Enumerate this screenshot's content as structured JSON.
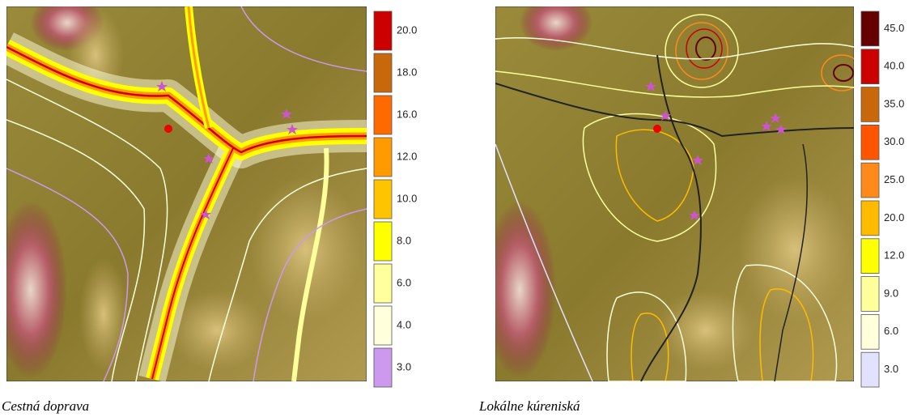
{
  "panels": [
    {
      "caption": "Cestná doprava",
      "legend": [
        {
          "label": "20.0",
          "color": "#cc0000"
        },
        {
          "label": "18.0",
          "color": "#c8680a"
        },
        {
          "label": "16.0",
          "color": "#ff6a00"
        },
        {
          "label": "12.0",
          "color": "#ff9a00"
        },
        {
          "label": "10.0",
          "color": "#ffc400"
        },
        {
          "label": "8.0",
          "color": "#ffff00"
        },
        {
          "label": "6.0",
          "color": "#ffff9c"
        },
        {
          "label": "4.0",
          "color": "#ffffdc"
        },
        {
          "label": "3.0",
          "color": "#cc99ee"
        }
      ]
    },
    {
      "caption": "Lokálne kúreniská",
      "legend": [
        {
          "label": "45.0",
          "color": "#660000"
        },
        {
          "label": "40.0",
          "color": "#cc0000"
        },
        {
          "label": "35.0",
          "color": "#c8680a"
        },
        {
          "label": "30.0",
          "color": "#ff5500"
        },
        {
          "label": "25.0",
          "color": "#ff8a1a"
        },
        {
          "label": "20.0",
          "color": "#ffbb00"
        },
        {
          "label": "12.0",
          "color": "#ffff00"
        },
        {
          "label": "9.0",
          "color": "#ffff9c"
        },
        {
          "label": "6.0",
          "color": "#ffffdc"
        },
        {
          "label": "3.0",
          "color": "#e2e2ff"
        }
      ]
    }
  ]
}
